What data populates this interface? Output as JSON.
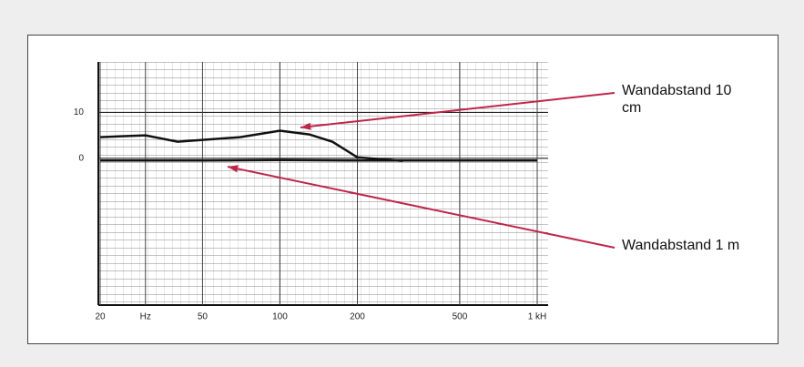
{
  "chart_data": {
    "type": "line",
    "log_x": true,
    "xlim": [
      20,
      1000
    ],
    "xticks": [
      20,
      {
        "value": 30,
        "label": "Hz"
      },
      50,
      100,
      200,
      500,
      {
        "value": 1000,
        "label": "1 kH"
      }
    ],
    "ylim": [
      -32,
      21
    ],
    "yticks": [
      0,
      10
    ],
    "series": [
      {
        "name": "Wandabstand 10 cm",
        "color": "#111111",
        "arrow_color": "#c0254a",
        "x": [
          20,
          30,
          40,
          50,
          70,
          100,
          130,
          160,
          200,
          300
        ],
        "values": [
          4.6,
          5,
          3.6,
          4,
          4.6,
          6,
          5.2,
          3.6,
          0.2,
          -0.6
        ]
      },
      {
        "name": "Wandabstand 1 m",
        "color": "#111111",
        "arrow_color": "#c0254a",
        "x": [
          20,
          50,
          100,
          200,
          500,
          1000
        ],
        "values": [
          -0.5,
          -0.5,
          -0.4,
          -0.5,
          -0.5,
          -0.5
        ]
      }
    ]
  }
}
